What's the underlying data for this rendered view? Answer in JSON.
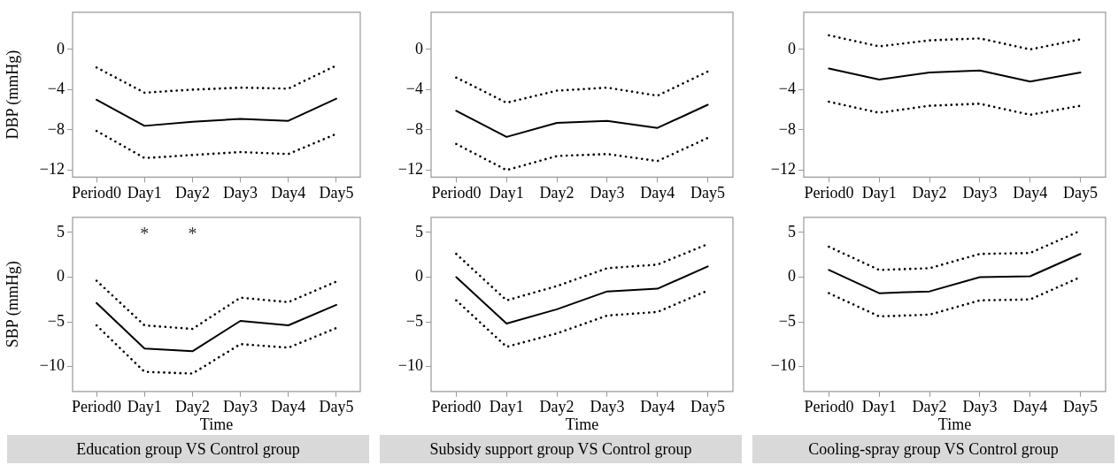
{
  "chart_data": [
    {
      "type": "line",
      "ylabel": "DBP (mmHg)",
      "categories": [
        "Period0",
        "Day1",
        "Day2",
        "Day3",
        "Day4",
        "Day5"
      ],
      "ylim": [
        -12.7,
        3.7
      ],
      "yticks": [
        {
          "value": 0,
          "label": "0"
        },
        {
          "value": -4,
          "label": "−4"
        },
        {
          "value": -8,
          "label": "−8"
        },
        {
          "value": -12,
          "label": "−12"
        }
      ],
      "series": [
        {
          "color": "#000000",
          "line_style": "solid",
          "values": [
            -5.0,
            -7.6,
            -7.2,
            -6.9,
            -7.1,
            -4.9
          ]
        },
        {
          "color": "#000000",
          "line_style": "dotted",
          "values": [
            -1.8,
            -4.3,
            -4.0,
            -3.8,
            -3.9,
            -1.6
          ]
        },
        {
          "color": "#000000",
          "line_style": "dotted",
          "values": [
            -8.1,
            -10.8,
            -10.5,
            -10.2,
            -10.4,
            -8.4
          ]
        }
      ]
    },
    {
      "type": "line",
      "categories": [
        "Period0",
        "Day1",
        "Day2",
        "Day3",
        "Day4",
        "Day5"
      ],
      "ylim": [
        -12.7,
        3.7
      ],
      "yticks": [
        {
          "value": 0,
          "label": "0"
        },
        {
          "value": -4,
          "label": "−4"
        },
        {
          "value": -8,
          "label": "−8"
        },
        {
          "value": -12,
          "label": "−12"
        }
      ],
      "series": [
        {
          "color": "#000000",
          "line_style": "solid",
          "values": [
            -6.1,
            -8.7,
            -7.3,
            -7.1,
            -7.8,
            -5.5
          ]
        },
        {
          "color": "#000000",
          "line_style": "dotted",
          "values": [
            -2.8,
            -5.3,
            -4.1,
            -3.8,
            -4.6,
            -2.2
          ]
        },
        {
          "color": "#000000",
          "line_style": "dotted",
          "values": [
            -9.4,
            -12.0,
            -10.6,
            -10.4,
            -11.1,
            -8.8
          ]
        }
      ]
    },
    {
      "type": "line",
      "categories": [
        "Period0",
        "Day1",
        "Day2",
        "Day3",
        "Day4",
        "Day5"
      ],
      "ylim": [
        -12.7,
        3.7
      ],
      "yticks": [
        {
          "value": 0,
          "label": "0"
        },
        {
          "value": -4,
          "label": "−4"
        },
        {
          "value": -8,
          "label": "−8"
        },
        {
          "value": -12,
          "label": "−12"
        }
      ],
      "series": [
        {
          "color": "#000000",
          "line_style": "solid",
          "values": [
            -1.9,
            -3.0,
            -2.3,
            -2.1,
            -3.2,
            -2.3
          ]
        },
        {
          "color": "#000000",
          "line_style": "dotted",
          "values": [
            1.4,
            0.3,
            0.9,
            1.1,
            0.0,
            1.0
          ]
        },
        {
          "color": "#000000",
          "line_style": "dotted",
          "values": [
            -5.2,
            -6.3,
            -5.6,
            -5.4,
            -6.5,
            -5.6
          ]
        }
      ]
    },
    {
      "type": "line",
      "ylabel": "SBP (mmHg)",
      "xlabel": "Time",
      "categories": [
        "Period0",
        "Day1",
        "Day2",
        "Day3",
        "Day4",
        "Day5"
      ],
      "ylim": [
        -12.8,
        6.7
      ],
      "yticks": [
        {
          "value": 5,
          "label": "5"
        },
        {
          "value": 0,
          "label": "0"
        },
        {
          "value": -5,
          "label": "−5"
        },
        {
          "value": -10,
          "label": "−10"
        }
      ],
      "series": [
        {
          "color": "#000000",
          "line_style": "solid",
          "values": [
            -2.9,
            -8.0,
            -8.3,
            -4.9,
            -5.4,
            -3.1
          ]
        },
        {
          "color": "#000000",
          "line_style": "dotted",
          "values": [
            -0.4,
            -5.4,
            -5.8,
            -2.3,
            -2.8,
            -0.5
          ]
        },
        {
          "color": "#000000",
          "line_style": "dotted",
          "values": [
            -5.4,
            -10.6,
            -10.8,
            -7.5,
            -7.9,
            -5.7
          ]
        }
      ],
      "title": "Education group VS Control group",
      "annotations": [
        "*",
        "*"
      ]
    },
    {
      "type": "line",
      "xlabel": "Time",
      "categories": [
        "Period0",
        "Day1",
        "Day2",
        "Day3",
        "Day4",
        "Day5"
      ],
      "ylim": [
        -12.8,
        6.7
      ],
      "yticks": [
        {
          "value": 5,
          "label": "5"
        },
        {
          "value": 0,
          "label": "0"
        },
        {
          "value": -5,
          "label": "−5"
        },
        {
          "value": -10,
          "label": "−10"
        }
      ],
      "series": [
        {
          "color": "#000000",
          "line_style": "solid",
          "values": [
            0.0,
            -5.2,
            -3.6,
            -1.6,
            -1.3,
            1.2
          ]
        },
        {
          "color": "#000000",
          "line_style": "dotted",
          "values": [
            2.6,
            -2.6,
            -1.0,
            1.0,
            1.4,
            3.7
          ]
        },
        {
          "color": "#000000",
          "line_style": "dotted",
          "values": [
            -2.6,
            -7.8,
            -6.3,
            -4.3,
            -3.9,
            -1.5
          ]
        }
      ],
      "title": "Subsidy support group VS Control group"
    },
    {
      "type": "line",
      "xlabel": "Time",
      "categories": [
        "Period0",
        "Day1",
        "Day2",
        "Day3",
        "Day4",
        "Day5"
      ],
      "ylim": [
        -12.8,
        6.7
      ],
      "yticks": [
        {
          "value": 5,
          "label": "5"
        },
        {
          "value": 0,
          "label": "0"
        },
        {
          "value": -5,
          "label": "−5"
        },
        {
          "value": -10,
          "label": "−10"
        }
      ],
      "series": [
        {
          "color": "#000000",
          "line_style": "solid",
          "values": [
            0.8,
            -1.8,
            -1.6,
            0.0,
            0.1,
            2.6
          ]
        },
        {
          "color": "#000000",
          "line_style": "dotted",
          "values": [
            3.4,
            0.8,
            1.0,
            2.6,
            2.7,
            5.2
          ]
        },
        {
          "color": "#000000",
          "line_style": "dotted",
          "values": [
            -1.8,
            -4.4,
            -4.2,
            -2.6,
            -2.5,
            0.0
          ]
        }
      ],
      "title": "Cooling-spray group VS Control group"
    }
  ]
}
